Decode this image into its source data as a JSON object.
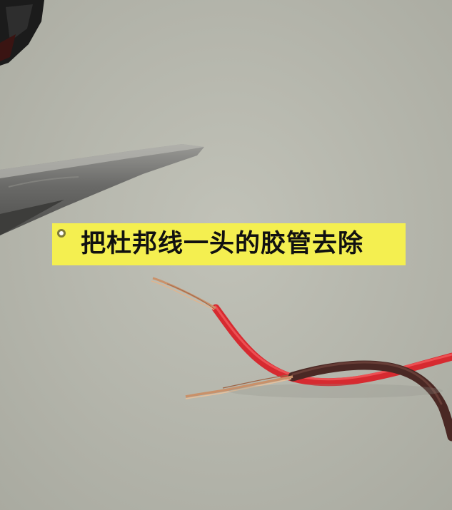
{
  "caption": {
    "text": "把杜邦线一头的胶管去除"
  },
  "scene": {
    "objects": [
      "scissors",
      "red-wire",
      "brown-wire",
      "exposed-copper-strands"
    ],
    "colors": {
      "background": "#b5b6ac",
      "banner": "#f4ef50",
      "red_wire": "#e8323a",
      "brown_wire": "#4d2a26",
      "copper": "#c9916a",
      "scissors_blade": "#6f6f6d"
    }
  }
}
